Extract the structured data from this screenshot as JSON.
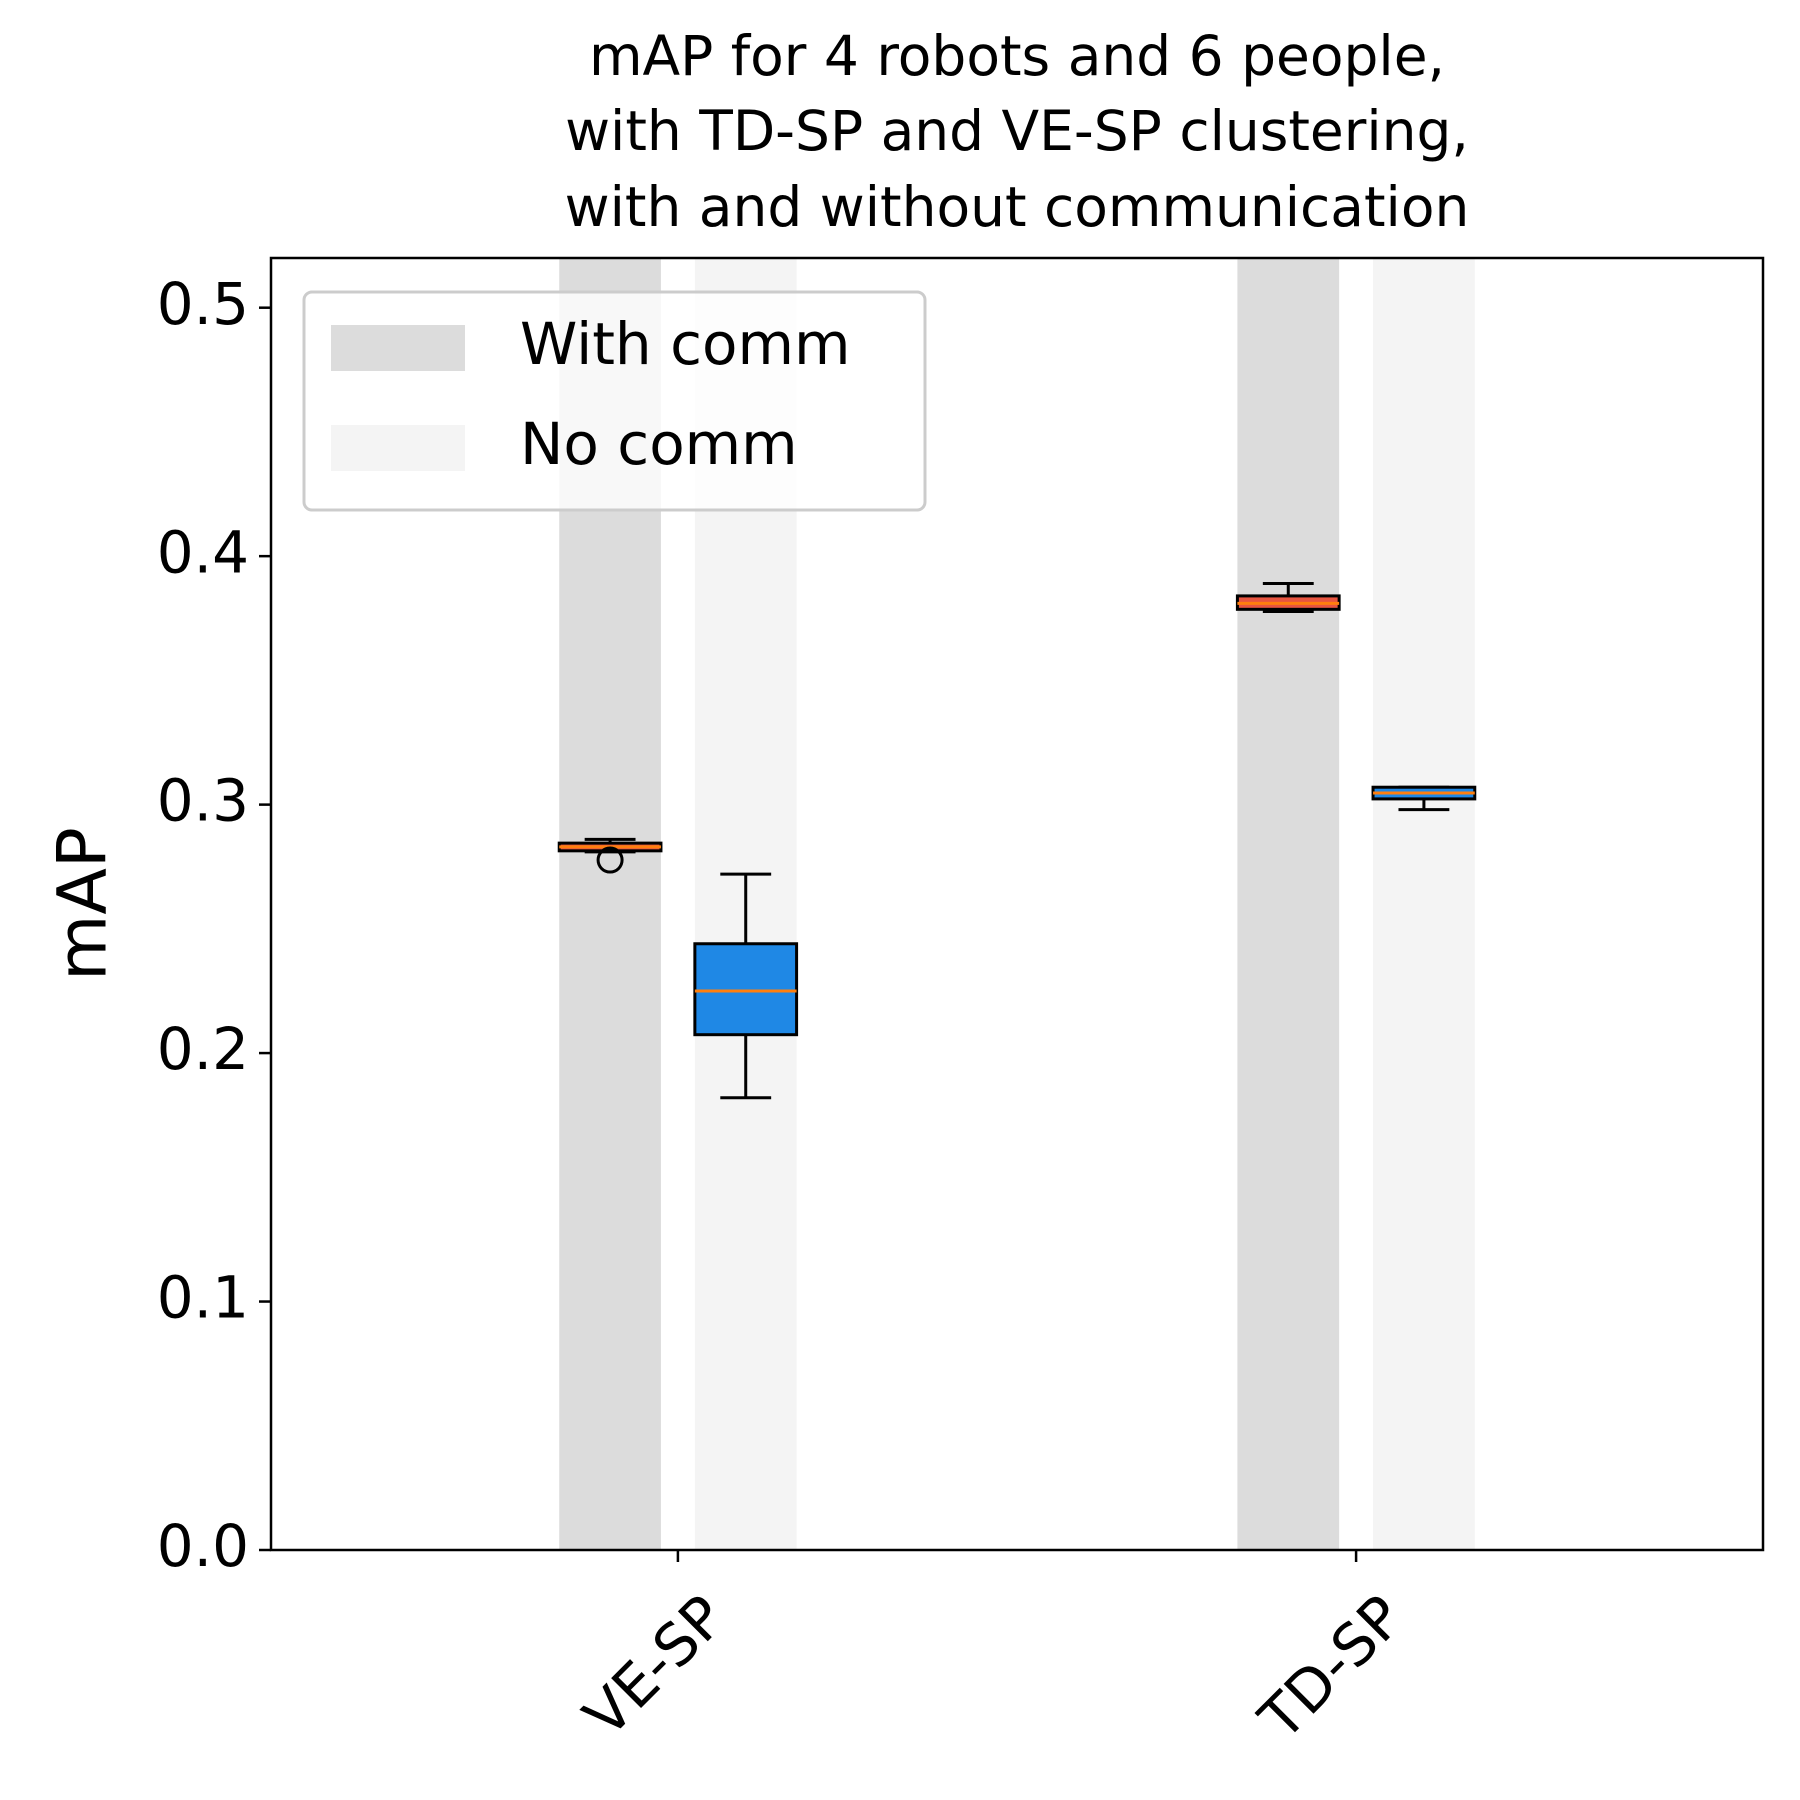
{
  "chart_data": {
    "type": "box",
    "title_lines": [
      "mAP for 4 robots and 6 people,",
      "with TD-SP and VE-SP clustering,",
      "with and without communication"
    ],
    "ylabel": "mAP",
    "categories": [
      "VE-SP",
      "TD-SP"
    ],
    "xlim": [
      0.4,
      2.6
    ],
    "ylim": [
      0,
      0.52
    ],
    "yticks": [
      {
        "value": 0,
        "label": "0.0"
      },
      0.1,
      0.2,
      0.3,
      0.4,
      0.5
    ],
    "median_color": "#ff7f0e",
    "legend": "upper left",
    "series": [
      {
        "name": "With comm",
        "color": "#dcdcdc",
        "box_color": "#e85540",
        "values": [
          {
            "whislo": 0.281,
            "q1": 0.2814,
            "med": 0.283,
            "q3": 0.2845,
            "whishi": 0.286,
            "fliers": [
              0.2777
            ]
          },
          {
            "whislo": 0.3777,
            "q1": 0.3786,
            "med": 0.381,
            "q3": 0.384,
            "whishi": 0.389,
            "fliers": []
          }
        ]
      },
      {
        "name": "No comm",
        "color": "#f4f4f4",
        "box_color": "#1f88e5",
        "values": [
          {
            "whislo": 0.182,
            "q1": 0.2074,
            "med": 0.225,
            "q3": 0.244,
            "whishi": 0.272,
            "fliers": []
          },
          {
            "whislo": 0.298,
            "q1": 0.3023,
            "med": 0.3047,
            "q3": 0.307,
            "whishi": 0.307,
            "fliers": []
          }
        ]
      }
    ]
  }
}
